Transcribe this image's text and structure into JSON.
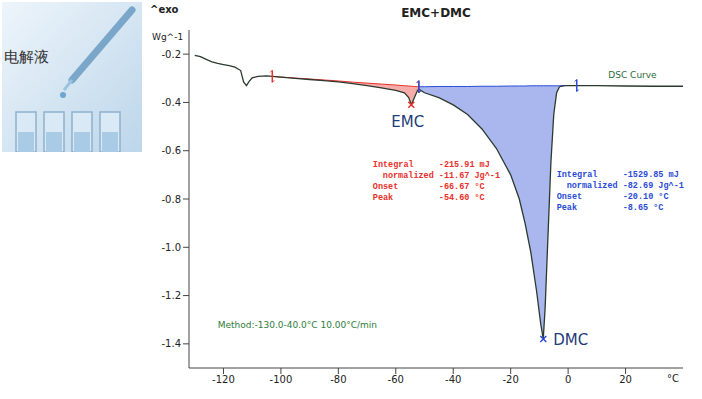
{
  "image_label": "电解液",
  "chart_data": {
    "type": "line",
    "title": "EMC+DMC",
    "x_label": "°C",
    "y_label": "Wg^-1",
    "exo_label": "^exo",
    "method": "Method:-130.0-40.0°C 10.00°C/min",
    "xlim": [
      -132,
      40
    ],
    "xticks": [
      -120,
      -100,
      -80,
      -60,
      -40,
      -20,
      0,
      20
    ],
    "ylim": [
      -1.5,
      -0.1
    ],
    "yticks": [
      -0.2,
      -0.4,
      -0.6,
      -0.8,
      {
        "value": -1,
        "label": "-1.0"
      },
      -1.2,
      -1.4
    ],
    "x": [
      -130,
      -128,
      -126,
      -124,
      -122,
      -120,
      -118,
      -116,
      -114,
      -113,
      -112,
      -111,
      -110,
      -108,
      -105,
      -103,
      -100,
      -95,
      -90,
      -85,
      -80,
      -75,
      -70,
      -65,
      -60,
      -57,
      -55.5,
      -54.6,
      -53.5,
      -52.5,
      -52,
      -50,
      -45,
      -40,
      -35,
      -30,
      -25,
      -20,
      -17,
      -15,
      -13,
      -11,
      -9.5,
      -8.65,
      -8,
      -7,
      -6,
      -5,
      -4,
      -3,
      -1,
      3,
      10,
      20,
      30,
      40
    ],
    "series": [
      {
        "name": "DSC Curve",
        "color": "#2b3a2e",
        "values": [
          -0.205,
          -0.21,
          -0.222,
          -0.232,
          -0.238,
          -0.243,
          -0.248,
          -0.254,
          -0.268,
          -0.315,
          -0.33,
          -0.312,
          -0.298,
          -0.292,
          -0.29,
          -0.292,
          -0.295,
          -0.3,
          -0.305,
          -0.31,
          -0.315,
          -0.322,
          -0.33,
          -0.34,
          -0.35,
          -0.36,
          -0.38,
          -0.41,
          -0.38,
          -0.352,
          -0.345,
          -0.36,
          -0.38,
          -0.41,
          -0.45,
          -0.51,
          -0.59,
          -0.7,
          -0.8,
          -0.9,
          -1.02,
          -1.18,
          -1.32,
          -1.38,
          -1.25,
          -0.95,
          -0.65,
          -0.45,
          -0.36,
          -0.335,
          -0.33,
          -0.33,
          -0.33,
          -0.332,
          -0.333,
          -0.333
        ]
      }
    ],
    "peaks": [
      {
        "name": "EMC",
        "color": "#e8312a",
        "peak": {
          "x": -54.6,
          "y": -0.41
        },
        "baseline": [
          null,
          null,
          null,
          null,
          null,
          null,
          null,
          null,
          null,
          null,
          null,
          null,
          null,
          null,
          null,
          -0.292,
          -0.295,
          -0.299,
          -0.303,
          -0.307,
          -0.311,
          -0.316,
          -0.32,
          -0.324,
          -0.328,
          -0.331,
          -0.332,
          -0.333,
          -0.334,
          -0.335,
          -0.335,
          null,
          null,
          null,
          null,
          null,
          null,
          null,
          null,
          null,
          null,
          null,
          null,
          null,
          null,
          null,
          null,
          null,
          null,
          null,
          null,
          null,
          null,
          null,
          null,
          null
        ],
        "annotation": [
          [
            "Integral",
            "-215.91 mJ"
          ],
          [
            "normalized",
            "-11.67 Jg^-1"
          ],
          [
            "Onset",
            "-66.67 °C"
          ],
          [
            "Peak",
            "-54.60 °C"
          ]
        ]
      },
      {
        "name": "DMC",
        "color": "#2a4bd7",
        "peak": {
          "x": -8.65,
          "y": -1.38
        },
        "baseline": [
          null,
          null,
          null,
          null,
          null,
          null,
          null,
          null,
          null,
          null,
          null,
          null,
          null,
          null,
          null,
          null,
          null,
          null,
          null,
          null,
          null,
          null,
          null,
          null,
          null,
          null,
          null,
          null,
          null,
          null,
          -0.335,
          -0.335,
          -0.334,
          -0.334,
          -0.334,
          -0.333,
          -0.333,
          -0.332,
          -0.332,
          -0.332,
          -0.331,
          -0.331,
          -0.331,
          -0.331,
          -0.331,
          -0.331,
          -0.331,
          -0.331,
          -0.331,
          -0.331,
          -0.33,
          -0.33,
          null,
          null,
          null,
          null
        ],
        "annotation": [
          [
            "Integral",
            "-1529.85 mJ"
          ],
          [
            "normalized",
            "-82.69 Jg^-1"
          ],
          [
            "Onset",
            "-20.10 °C"
          ],
          [
            "Peak",
            "-8.65 °C"
          ]
        ]
      }
    ]
  }
}
